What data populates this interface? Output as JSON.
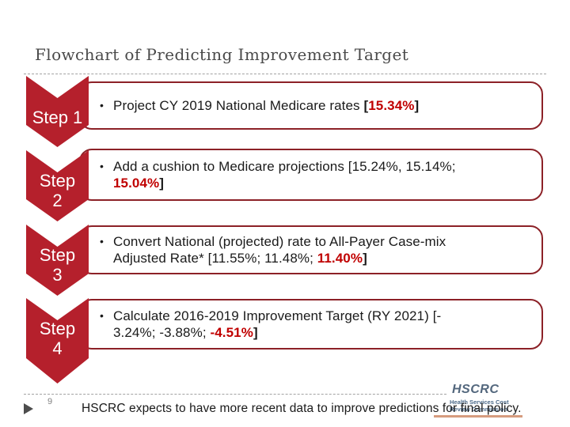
{
  "title": "Flowchart of Predicting Improvement Target",
  "page_number": "9",
  "footer_text": "HSCRC expects to have more recent data to improve predictions for final policy.",
  "bullet_char": "•",
  "logo": {
    "acronym": "HSCRC",
    "sub_line1": "Health Services Cost",
    "sub_line2": "Review Commission"
  },
  "colors": {
    "chevron_red": "#b5202c",
    "box_border_red": "#8c2127",
    "value_red": "#c00000",
    "title_gray": "#4a4a4a",
    "logo_blue": "#53677d",
    "logo_underline_salmon": "#d69b7e"
  },
  "steps": [
    {
      "label_lines": [
        "Step 1"
      ],
      "segments": [
        {
          "text": "Project CY 2019 National Medicare rates "
        },
        {
          "text": "[",
          "bold": true
        },
        {
          "text": "15.34%",
          "bold": true,
          "red": true
        },
        {
          "text": "]",
          "bold": true
        }
      ]
    },
    {
      "label_lines": [
        "Step",
        "2"
      ],
      "segments": [
        {
          "text": "Add a cushion to Medicare projections [15.24%, 15.14%;"
        },
        {
          "break": true
        },
        {
          "text": "15.04%",
          "bold": true,
          "red": true
        },
        {
          "text": "]",
          "bold": true
        }
      ]
    },
    {
      "label_lines": [
        "Step",
        "3"
      ],
      "segments": [
        {
          "text": "Convert National (projected) rate to All-Payer Case-mix"
        },
        {
          "break": true
        },
        {
          "text": "Adjusted Rate* [11.55%; 11.48%; "
        },
        {
          "text": "11.40%",
          "bold": true,
          "red": true
        },
        {
          "text": "]",
          "bold": true
        }
      ]
    },
    {
      "label_lines": [
        "Step",
        "4"
      ],
      "segments": [
        {
          "text": "Calculate 2016-2019 Improvement Target (RY 2021) [-"
        },
        {
          "break": true
        },
        {
          "text": "3.24%; -3.88%; "
        },
        {
          "text": "-4.51%",
          "bold": true,
          "red": true
        },
        {
          "text": "]",
          "bold": true
        }
      ]
    }
  ]
}
